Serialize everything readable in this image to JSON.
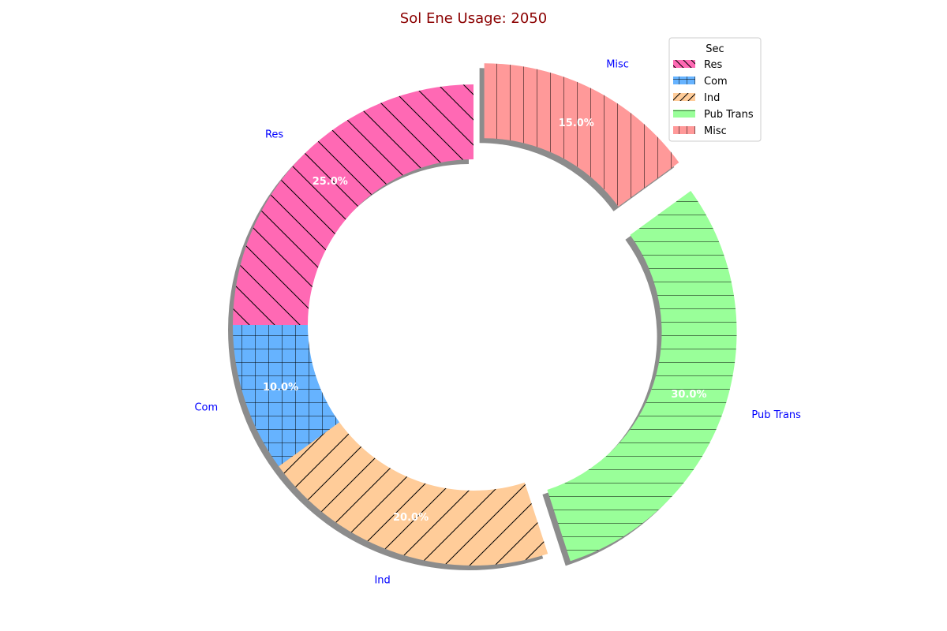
{
  "chart_data": {
    "type": "pie",
    "title": "Sol Ene Usage: 2050",
    "donut": true,
    "shadow": true,
    "start_angle_deg": 90,
    "direction": "counterclockwise",
    "categories": [
      "Res",
      "Com",
      "Ind",
      "Pub Trans",
      "Misc"
    ],
    "values": [
      25.0,
      10.0,
      20.0,
      30.0,
      15.0
    ],
    "percent_labels": [
      "25.0%",
      "10.0%",
      "20.0%",
      "30.0%",
      "15.0%"
    ],
    "exploded": [
      false,
      false,
      false,
      true,
      true
    ],
    "colors": [
      "#ff69b4",
      "#66b3ff",
      "#ffcc99",
      "#99ff99",
      "#ff9999"
    ],
    "hatches": [
      "back-diagonal",
      "grid",
      "forward-diagonal",
      "horizontal",
      "vertical"
    ],
    "legend": {
      "title": "Sec",
      "position": "top-right",
      "entries": [
        "Res",
        "Com",
        "Ind",
        "Pub Trans",
        "Misc"
      ]
    },
    "title_color": "#8b0000",
    "label_color": "#0000ff",
    "percent_color": "#ffffff"
  }
}
